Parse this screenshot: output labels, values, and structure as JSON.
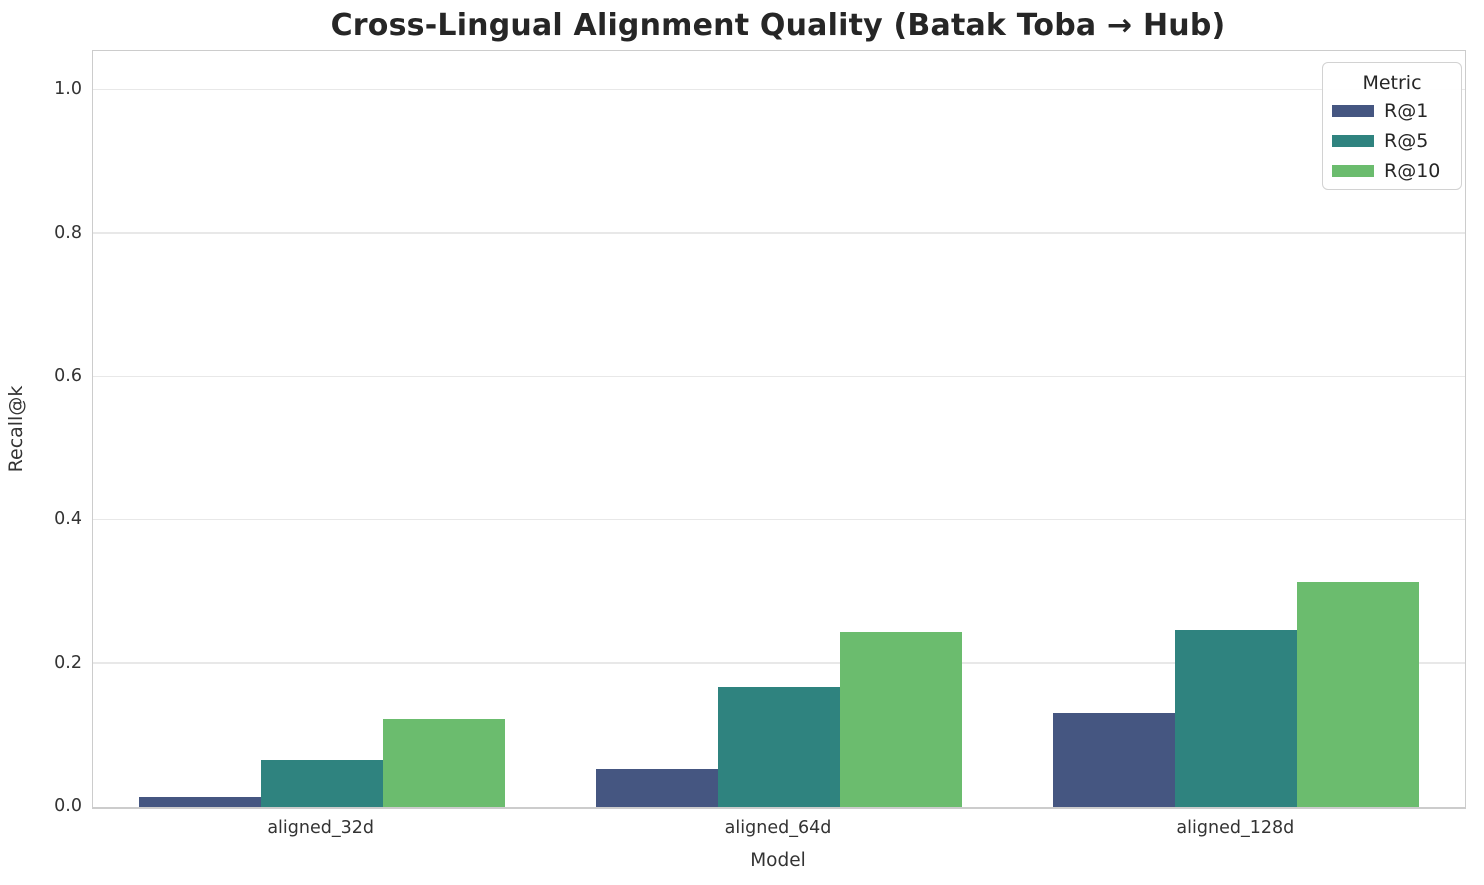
{
  "title": "Cross-Lingual Alignment Quality (Batak Toba → Hub)",
  "chart_data": {
    "type": "bar",
    "title": "Cross-Lingual Alignment Quality (Batak Toba → Hub)",
    "xlabel": "Model",
    "ylabel": "Recall@k",
    "categories": [
      "aligned_32d",
      "aligned_64d",
      "aligned_128d"
    ],
    "series": [
      {
        "name": "R@1",
        "color": "#455681",
        "values": [
          0.014,
          0.053,
          0.131
        ]
      },
      {
        "name": "R@5",
        "color": "#2f837f",
        "values": [
          0.066,
          0.168,
          0.247
        ]
      },
      {
        "name": "R@10",
        "color": "#6bbc6e",
        "values": [
          0.123,
          0.244,
          0.314
        ]
      }
    ],
    "legend_title": "Metric",
    "legend_position": "upper right",
    "ylim": [
      0,
      1.055
    ],
    "yticks": [
      0.0,
      0.2,
      0.4,
      0.6,
      0.8,
      1.0
    ],
    "ytick_labels": [
      "0.0",
      "0.2",
      "0.4",
      "0.6",
      "0.8",
      "1.0"
    ],
    "grid": true,
    "grid_color": "#e8e8e8",
    "spine_color": "#cccccc",
    "background": "#ffffff",
    "text_color": "#333333",
    "title_color": "#262626"
  }
}
